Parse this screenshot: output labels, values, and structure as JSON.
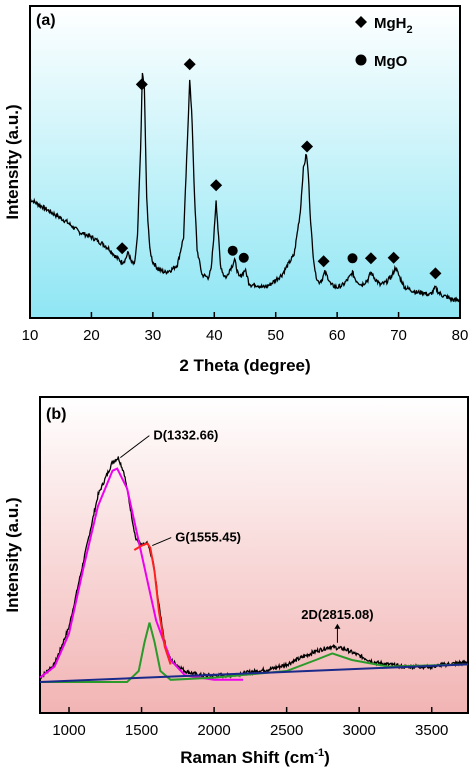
{
  "chart_data": [
    {
      "panel_label": "(a)",
      "type": "line",
      "xlabel": "2 Theta (degree)",
      "ylabel": "Intensity (a.u.)",
      "xlim": [
        10,
        80
      ],
      "x_ticks": [
        10,
        20,
        30,
        40,
        50,
        60,
        70,
        80
      ],
      "y_tick_labels": false,
      "background": {
        "top": "#ffffff",
        "bottom": "#8fe6f4"
      },
      "series": [
        {
          "color": "#000000",
          "x": [
            10,
            12,
            14,
            16,
            18,
            20,
            22,
            23,
            24,
            25,
            25.5,
            26,
            26.5,
            27,
            27.5,
            28,
            28.3,
            28.6,
            29,
            29.5,
            30,
            31,
            32,
            33,
            34,
            35,
            35.5,
            36,
            36.4,
            36.8,
            37.2,
            38,
            39,
            39.5,
            40,
            40.3,
            40.6,
            41,
            41.5,
            42,
            42.5,
            43,
            43.3,
            43.6,
            44,
            44.5,
            45,
            45.3,
            45.6,
            46,
            47,
            48,
            49,
            50,
            51,
            52,
            53,
            54,
            54.5,
            55,
            55.3,
            55.6,
            56,
            56.5,
            57,
            57.5,
            58,
            58.5,
            59,
            60,
            61,
            62,
            62.5,
            63,
            64,
            65,
            65.5,
            66,
            67,
            68,
            69,
            69.5,
            70,
            71,
            72,
            73,
            74,
            75,
            75.5,
            76,
            76.5,
            77,
            78,
            79,
            80
          ],
          "values": [
            0.4,
            0.37,
            0.34,
            0.31,
            0.27,
            0.25,
            0.22,
            0.2,
            0.17,
            0.15,
            0.16,
            0.19,
            0.15,
            0.14,
            0.25,
            0.6,
            0.9,
            0.85,
            0.4,
            0.2,
            0.15,
            0.12,
            0.11,
            0.12,
            0.14,
            0.25,
            0.55,
            0.88,
            0.7,
            0.4,
            0.2,
            0.1,
            0.09,
            0.12,
            0.28,
            0.4,
            0.28,
            0.14,
            0.1,
            0.09,
            0.12,
            0.14,
            0.16,
            0.13,
            0.09,
            0.1,
            0.12,
            0.1,
            0.07,
            0.06,
            0.06,
            0.05,
            0.06,
            0.08,
            0.1,
            0.14,
            0.18,
            0.35,
            0.52,
            0.58,
            0.5,
            0.35,
            0.2,
            0.1,
            0.07,
            0.08,
            0.11,
            0.09,
            0.06,
            0.05,
            0.06,
            0.09,
            0.11,
            0.08,
            0.06,
            0.08,
            0.11,
            0.09,
            0.06,
            0.07,
            0.1,
            0.13,
            0.1,
            0.05,
            0.04,
            0.03,
            0.03,
            0.02,
            0.03,
            0.05,
            0.03,
            0.02,
            0.01,
            0.0,
            0.0
          ]
        }
      ],
      "markers": {
        "MgH2": [
          25,
          28.2,
          36,
          40.3,
          55.1,
          57.8,
          65.5,
          69.2,
          76
        ],
        "MgO": [
          43,
          44.8,
          62.5
        ]
      },
      "legend": {
        "entries": [
          {
            "symbol": "diamond",
            "label": "MgH",
            "sub": "2"
          },
          {
            "symbol": "circle",
            "label": "MgO",
            "sub": ""
          }
        ],
        "placement": "top-right"
      }
    },
    {
      "panel_label": "(b)",
      "type": "line",
      "xlabel": "Raman Shift (cm",
      "xlabel_sup": "-1",
      "xlabel_close": ")",
      "ylabel": "Intensity (a.u.)",
      "xlim": [
        800,
        3750
      ],
      "x_ticks": [
        1000,
        1500,
        2000,
        2500,
        3000,
        3500
      ],
      "y_tick_labels": false,
      "background": {
        "top": "#ffffff",
        "bottom": "#f2b4b4"
      },
      "series": [
        {
          "color": "#000000",
          "x": [
            800,
            900,
            1000,
            1100,
            1200,
            1300,
            1340,
            1380,
            1420,
            1460,
            1500,
            1540,
            1580,
            1620,
            1660,
            1700,
            1800,
            1900,
            2000,
            2100,
            2200,
            2300,
            2400,
            2500,
            2600,
            2700,
            2800,
            2900,
            3000,
            3100,
            3200,
            3300,
            3400,
            3500,
            3600,
            3750
          ],
          "values": [
            0.02,
            0.08,
            0.25,
            0.55,
            0.85,
            1.0,
            1.02,
            0.95,
            0.8,
            0.65,
            0.62,
            0.63,
            0.55,
            0.35,
            0.18,
            0.1,
            0.05,
            0.03,
            0.03,
            0.03,
            0.04,
            0.05,
            0.06,
            0.08,
            0.11,
            0.14,
            0.16,
            0.15,
            0.12,
            0.09,
            0.08,
            0.07,
            0.07,
            0.07,
            0.08,
            0.09
          ]
        },
        {
          "color": "#ee00ee",
          "x": [
            800,
            900,
            1000,
            1100,
            1200,
            1300,
            1332,
            1400,
            1500,
            1600,
            1700,
            1800,
            2000,
            2200
          ],
          "values": [
            0.02,
            0.07,
            0.22,
            0.52,
            0.8,
            0.96,
            0.97,
            0.88,
            0.58,
            0.28,
            0.1,
            0.03,
            0.01,
            0.01
          ]
        },
        {
          "color": "#ff2020",
          "x": [
            1450,
            1500,
            1540,
            1560,
            1590,
            1620,
            1660,
            1700
          ],
          "values": [
            0.6,
            0.62,
            0.63,
            0.61,
            0.5,
            0.32,
            0.16,
            0.08
          ]
        },
        {
          "color": "#2a9a2a",
          "x": [
            800,
            1400,
            1480,
            1520,
            1555,
            1590,
            1630,
            1700,
            2000,
            2500,
            2700,
            2815,
            2950,
            3200,
            3750
          ],
          "values": [
            0.0,
            0.0,
            0.05,
            0.18,
            0.27,
            0.18,
            0.05,
            0.01,
            0.02,
            0.05,
            0.1,
            0.13,
            0.1,
            0.07,
            0.08
          ]
        },
        {
          "color": "#1a2a8a",
          "x": [
            800,
            3750
          ],
          "values": [
            0.0,
            0.08
          ]
        }
      ],
      "annotations": [
        {
          "text": "D(1332.66)",
          "x": 1340,
          "y": 1.02
        },
        {
          "text": "G(1555.45)",
          "x": 1560,
          "y": 0.62
        },
        {
          "text": "2D(2815.08)",
          "x": 2850,
          "y": 0.16
        }
      ]
    }
  ]
}
